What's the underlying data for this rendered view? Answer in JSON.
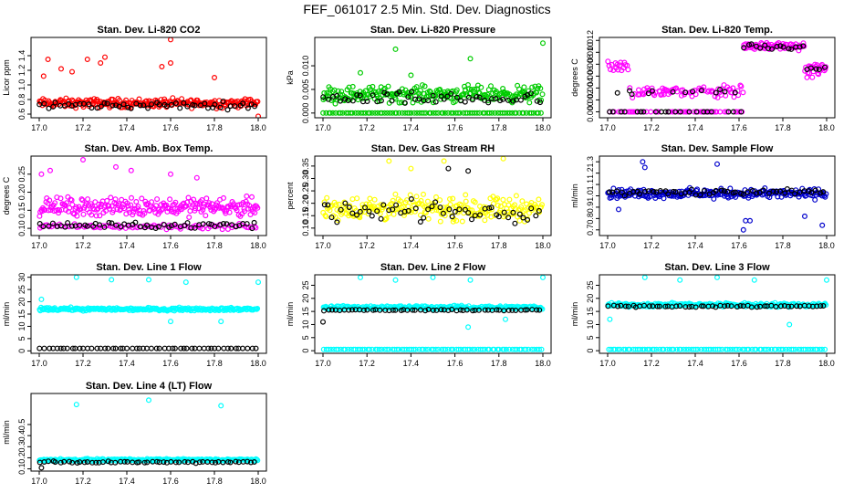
{
  "title": "FEF_061017  2.5 Min. Std. Dev. Diagnostics",
  "chart_data": [
    {
      "type": "scatter",
      "title": "Stan. Dev. Li-820 CO2",
      "ylabel": "Licor ppm",
      "xlim": [
        17.0,
        18.0
      ],
      "xticks": [
        "17.0",
        "17.2",
        "17.4",
        "17.6",
        "17.8",
        "18.0"
      ],
      "ylim": [
        0.55,
        1.65
      ],
      "yticks": [
        {
          "v": 0.6,
          "label": "0.6"
        },
        {
          "v": 0.8,
          "label": "0.8"
        },
        {
          "v": 1.0,
          "label": "1.0"
        },
        {
          "v": 1.2,
          "label": "1.2"
        },
        {
          "v": 1.4,
          "label": "1.4"
        }
      ],
      "series": [
        {
          "name": "colored",
          "color": "#ff0000",
          "base": 0.75,
          "spread": 0.09,
          "outliers": [
            [
              17.02,
              1.12
            ],
            [
              17.04,
              1.35
            ],
            [
              17.1,
              1.22
            ],
            [
              17.15,
              1.18
            ],
            [
              17.22,
              1.35
            ],
            [
              17.28,
              1.3
            ],
            [
              17.3,
              1.38
            ],
            [
              17.6,
              1.62
            ],
            [
              17.56,
              1.25
            ],
            [
              17.6,
              1.3
            ],
            [
              17.8,
              1.1
            ],
            [
              18.0,
              0.57
            ]
          ]
        },
        {
          "name": "black",
          "color": "#000000",
          "base": 0.72,
          "spread": 0.07,
          "outliers": []
        }
      ]
    },
    {
      "type": "scatter",
      "title": "Stan. Dev. Li-820 Pressure",
      "ylabel": "kPa",
      "xlim": [
        17.0,
        18.0
      ],
      "xticks": [
        "17.0",
        "17.2",
        "17.4",
        "17.6",
        "17.8",
        "18.0"
      ],
      "ylim": [
        -0.001,
        0.016
      ],
      "yticks": [
        {
          "v": 0.0,
          "label": "0.000"
        },
        {
          "v": 0.005,
          "label": "0.005"
        },
        {
          "v": 0.01,
          "label": "0.010"
        }
      ],
      "series": [
        {
          "name": "colored",
          "color": "#00cc00",
          "base": 0.004,
          "spread": 0.0025,
          "outliers": [
            [
              17.33,
              0.0135
            ],
            [
              17.67,
              0.0115
            ],
            [
              17.17,
              0.0085
            ],
            [
              18.0,
              0.0148
            ],
            [
              17.4,
              0.008
            ]
          ]
        },
        {
          "name": "colored-zero",
          "color": "#00cc00",
          "base": 0.0,
          "spread": 0.0,
          "outliers": []
        },
        {
          "name": "black",
          "color": "#000000",
          "base": 0.003,
          "spread": 0.002,
          "outliers": []
        }
      ]
    },
    {
      "type": "scatter",
      "title": "Stan. Dev. Li-820 Temp.",
      "ylabel": "degrees C",
      "xlim": [
        17.0,
        18.0
      ],
      "xticks": [
        "17.0",
        "17.2",
        "17.4",
        "17.6",
        "17.8",
        "18.0"
      ],
      "ylim": [
        -0.001,
        0.0125
      ],
      "yticks": [
        {
          "v": 0.0,
          "label": "0.000"
        },
        {
          "v": 0.002,
          "label": "0.002"
        },
        {
          "v": 0.004,
          "label": "0.004"
        },
        {
          "v": 0.006,
          "label": "0.006"
        },
        {
          "v": 0.008,
          "label": "0.008"
        },
        {
          "v": 0.01,
          "label": "0.010"
        },
        {
          "v": 0.012,
          "label": "0.012"
        }
      ],
      "series": [
        {
          "name": "colored",
          "color": "#ff00ff",
          "base": 0.004,
          "spread": 0.002,
          "outliers": []
        },
        {
          "name": "black",
          "color": "#000000",
          "base": 0.003,
          "spread": 0.0015,
          "outliers": []
        }
      ]
    },
    {
      "type": "scatter",
      "title": "Stan. Dev. Amb. Box Temp.",
      "ylabel": "degrees C",
      "xlim": [
        17.0,
        18.0
      ],
      "xticks": [
        "17.0",
        "17.2",
        "17.4",
        "17.6",
        "17.8",
        "18.0"
      ],
      "ylim": [
        0.08,
        0.3
      ],
      "yticks": [
        {
          "v": 0.1,
          "label": "0.10"
        },
        {
          "v": 0.15,
          "label": "0.15"
        },
        {
          "v": 0.2,
          "label": "0.20"
        },
        {
          "v": 0.25,
          "label": "0.25"
        }
      ],
      "series": [
        {
          "name": "colored",
          "color": "#ff00ff",
          "base": 0.16,
          "spread": 0.035,
          "outliers": [
            [
              17.01,
              0.25
            ],
            [
              17.05,
              0.26
            ],
            [
              17.2,
              0.29
            ],
            [
              17.35,
              0.27
            ],
            [
              17.42,
              0.26
            ],
            [
              17.6,
              0.25
            ],
            [
              17.72,
              0.24
            ]
          ]
        },
        {
          "name": "colored-low",
          "color": "#ff00ff",
          "base": 0.105,
          "spread": 0.01,
          "outliers": []
        },
        {
          "name": "black",
          "color": "#000000",
          "base": 0.108,
          "spread": 0.012,
          "outliers": []
        }
      ]
    },
    {
      "type": "scatter",
      "title": "Stan. Dev. Gas Stream RH",
      "ylabel": "percent",
      "xlim": [
        17.0,
        18.0
      ],
      "xticks": [
        "17.0",
        "17.2",
        "17.4",
        "17.6",
        "17.8",
        "18.0"
      ],
      "ylim": [
        0.07,
        0.39
      ],
      "yticks": [
        {
          "v": 0.1,
          "label": "0.10"
        },
        {
          "v": 0.15,
          "label": "0.15"
        },
        {
          "v": 0.2,
          "label": "0.20"
        },
        {
          "v": 0.25,
          "label": "0.25"
        },
        {
          "v": 0.3,
          "label": "0.30"
        },
        {
          "v": 0.35,
          "label": "0.35"
        }
      ],
      "series": [
        {
          "name": "colored",
          "color": "#ffff00",
          "base": 0.18,
          "spread": 0.07,
          "outliers": [
            [
              17.3,
              0.37
            ],
            [
              17.55,
              0.37
            ],
            [
              17.82,
              0.38
            ],
            [
              17.4,
              0.34
            ]
          ]
        },
        {
          "name": "black",
          "color": "#000000",
          "base": 0.17,
          "spread": 0.06,
          "outliers": [
            [
              17.57,
              0.34
            ],
            [
              17.66,
              0.33
            ]
          ]
        }
      ]
    },
    {
      "type": "scatter",
      "title": "Stan. Dev. Sample Flow",
      "ylabel": "ml/min",
      "xlim": [
        17.0,
        18.0
      ],
      "xticks": [
        "17.0",
        "17.2",
        "17.4",
        "17.6",
        "17.8",
        "18.0"
      ],
      "ylim": [
        0.65,
        1.35
      ],
      "yticks": [
        {
          "v": 0.7,
          "label": "0.7"
        },
        {
          "v": 0.8,
          "label": "0.8"
        },
        {
          "v": 0.9,
          "label": "0.9"
        },
        {
          "v": 1.0,
          "label": "1.0"
        },
        {
          "v": 1.1,
          "label": "1.1"
        },
        {
          "v": 1.2,
          "label": "1.2"
        },
        {
          "v": 1.3,
          "label": "1.3"
        }
      ],
      "series": [
        {
          "name": "colored",
          "color": "#0000cc",
          "base": 1.02,
          "spread": 0.06,
          "outliers": [
            [
              17.16,
              1.3
            ],
            [
              17.17,
              1.25
            ],
            [
              17.5,
              1.28
            ],
            [
              17.62,
              0.7
            ],
            [
              17.63,
              0.78
            ],
            [
              17.65,
              0.78
            ],
            [
              17.98,
              0.74
            ],
            [
              17.05,
              0.88
            ],
            [
              17.9,
              0.82
            ]
          ]
        },
        {
          "name": "black",
          "color": "#000000",
          "base": 1.03,
          "spread": 0.04,
          "outliers": []
        }
      ]
    },
    {
      "type": "scatter",
      "title": "Stan. Dev. Line 1 Flow",
      "ylabel": "ml/min",
      "xlim": [
        17.0,
        18.0
      ],
      "xticks": [
        "17.0",
        "17.2",
        "17.4",
        "17.6",
        "17.8",
        "18.0"
      ],
      "ylim": [
        -1,
        31
      ],
      "yticks": [
        {
          "v": 0,
          "label": "0"
        },
        {
          "v": 5,
          "label": "5"
        },
        {
          "v": 10,
          "label": "10"
        },
        {
          "v": 15,
          "label": "15"
        },
        {
          "v": 20,
          "label": "20"
        },
        {
          "v": 25,
          "label": "25"
        },
        {
          "v": 30,
          "label": "30"
        }
      ],
      "series": [
        {
          "name": "colored",
          "color": "#00ffff",
          "base": 17,
          "spread": 0.9,
          "outliers": [
            [
              17.17,
              30
            ],
            [
              17.33,
              29
            ],
            [
              17.5,
              29
            ],
            [
              17.67,
              28
            ],
            [
              17.83,
              12
            ],
            [
              18.0,
              28
            ],
            [
              17.6,
              12
            ],
            [
              17.01,
              21
            ]
          ]
        },
        {
          "name": "black",
          "color": "#000000",
          "base": 1,
          "spread": 0.0,
          "outliers": []
        }
      ]
    },
    {
      "type": "scatter",
      "title": "Stan. Dev. Line 2 Flow",
      "ylabel": "ml/min",
      "xlim": [
        17.0,
        18.0
      ],
      "xticks": [
        "17.0",
        "17.2",
        "17.4",
        "17.6",
        "17.8",
        "18.0"
      ],
      "ylim": [
        -1,
        29
      ],
      "yticks": [
        {
          "v": 0,
          "label": "0"
        },
        {
          "v": 5,
          "label": "5"
        },
        {
          "v": 10,
          "label": "10"
        },
        {
          "v": 15,
          "label": "15"
        },
        {
          "v": 20,
          "label": "20"
        },
        {
          "v": 25,
          "label": "25"
        }
      ],
      "series": [
        {
          "name": "colored",
          "color": "#00ffff",
          "base": 16.5,
          "spread": 1.0,
          "outliers": [
            [
              17.17,
              28
            ],
            [
              17.33,
              27
            ],
            [
              17.5,
              28
            ],
            [
              17.67,
              27
            ],
            [
              17.83,
              12
            ],
            [
              18.0,
              28
            ],
            [
              17.66,
              9
            ]
          ]
        },
        {
          "name": "colored-zero",
          "color": "#00ffff",
          "base": 0.5,
          "spread": 0.0,
          "outliers": []
        },
        {
          "name": "black",
          "color": "#000000",
          "base": 15.5,
          "spread": 0.3,
          "outliers": [
            [
              17.0,
              11
            ]
          ]
        }
      ]
    },
    {
      "type": "scatter",
      "title": "Stan. Dev. Line 3 Flow",
      "ylabel": "ml/min",
      "xlim": [
        17.0,
        18.0
      ],
      "xticks": [
        "17.0",
        "17.2",
        "17.4",
        "17.6",
        "17.8",
        "18.0"
      ],
      "ylim": [
        -1,
        29
      ],
      "yticks": [
        {
          "v": 0,
          "label": "0"
        },
        {
          "v": 5,
          "label": "5"
        },
        {
          "v": 10,
          "label": "10"
        },
        {
          "v": 15,
          "label": "15"
        },
        {
          "v": 20,
          "label": "20"
        },
        {
          "v": 25,
          "label": "25"
        }
      ],
      "series": [
        {
          "name": "colored",
          "color": "#00ffff",
          "base": 17.5,
          "spread": 1.1,
          "outliers": [
            [
              17.17,
              28
            ],
            [
              17.33,
              27
            ],
            [
              17.5,
              28
            ],
            [
              17.67,
              27
            ],
            [
              17.83,
              10
            ],
            [
              18.0,
              27
            ],
            [
              17.01,
              12
            ]
          ]
        },
        {
          "name": "colored-zero",
          "color": "#00ffff",
          "base": 0.5,
          "spread": 0.0,
          "outliers": []
        },
        {
          "name": "black",
          "color": "#000000",
          "base": 17,
          "spread": 0.6,
          "outliers": []
        }
      ]
    },
    {
      "type": "scatter",
      "title": "Stan. Dev. Line 4 (LT) Flow",
      "ylabel": "ml/min",
      "xlim": [
        17.0,
        18.0
      ],
      "xticks": [
        "17.0",
        "17.2",
        "17.4",
        "17.6",
        "17.8",
        "18.0"
      ],
      "ylim": [
        0.08,
        0.78
      ],
      "yticks": [
        {
          "v": 0.1,
          "label": "0.1"
        },
        {
          "v": 0.2,
          "label": "0.2"
        },
        {
          "v": 0.3,
          "label": "0.3"
        },
        {
          "v": 0.4,
          "label": "0.4"
        },
        {
          "v": 0.5,
          "label": "0.5"
        }
      ],
      "series": [
        {
          "name": "colored",
          "color": "#00ffff",
          "base": 0.18,
          "spread": 0.015,
          "outliers": [
            [
              17.17,
              0.68
            ],
            [
              17.5,
              0.72
            ],
            [
              17.83,
              0.67
            ]
          ]
        },
        {
          "name": "black",
          "color": "#000000",
          "base": 0.16,
          "spread": 0.012,
          "outliers": [
            [
              17.01,
              0.11
            ]
          ]
        }
      ]
    }
  ]
}
